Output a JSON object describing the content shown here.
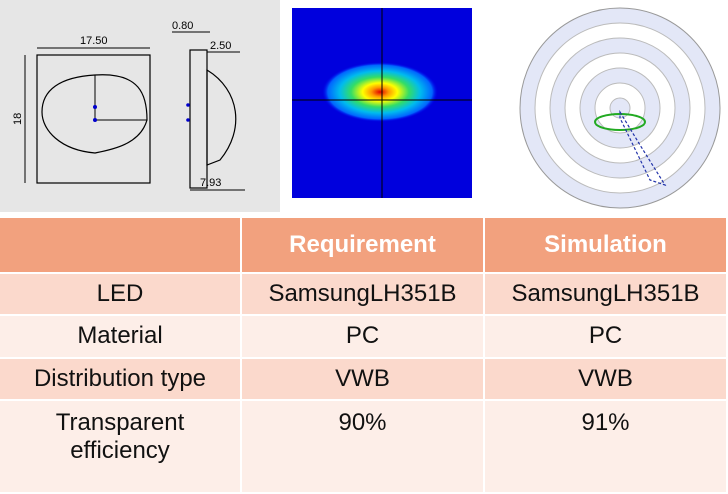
{
  "drawing": {
    "dimensions": {
      "width": "17.50",
      "wall": "0.80",
      "depth": "2.50",
      "height": "18",
      "total": "7.93"
    }
  },
  "table": {
    "header": [
      "Requirement",
      "Simulation"
    ],
    "rows": [
      [
        "LED",
        "SamsungLH351B",
        "SamsungLH351B"
      ],
      [
        "Material",
        "PC",
        "PC"
      ],
      [
        "Distribution type",
        "VWB",
        "VWB"
      ],
      [
        "Transparent efficiency",
        "90%",
        "91%"
      ]
    ]
  }
}
